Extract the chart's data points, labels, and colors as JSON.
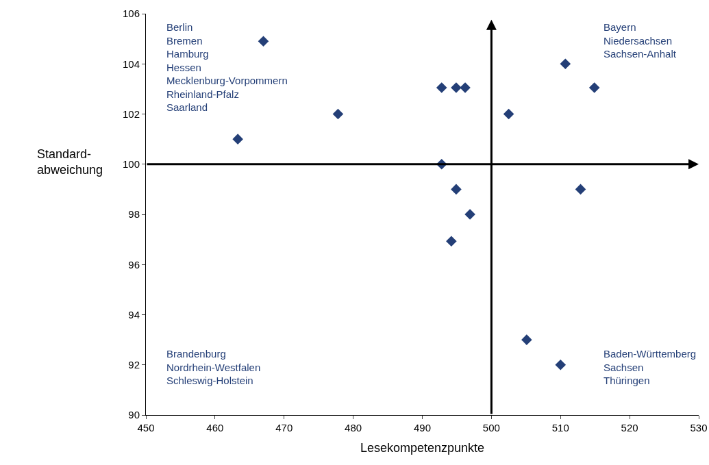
{
  "chart_data": {
    "type": "scatter",
    "xlabel": "Lesekompetenzpunkte",
    "ylabel": "Standard-\nabweichung",
    "series": [
      {
        "color": "#243f77",
        "x": [
          467,
          477.8,
          463.3,
          492.8,
          494.9,
          496.2,
          502.5,
          510.7,
          514.9,
          492.8,
          494.9,
          496.9,
          494.2,
          512.9,
          505.1,
          510
        ],
        "values": [
          104.9,
          102,
          101,
          103.05,
          103.05,
          103.05,
          102,
          104,
          103.05,
          100,
          99,
          98,
          96.93,
          99,
          93,
          92
        ]
      }
    ],
    "xlim": [
      450,
      530
    ],
    "xticks": [
      450,
      460,
      470,
      480,
      490,
      500,
      510,
      520,
      530
    ],
    "ylim": [
      90,
      106
    ],
    "yticks": [
      90,
      92,
      94,
      96,
      98,
      100,
      102,
      104,
      106
    ],
    "grid": false,
    "marker": "diamond",
    "ref_lines": [
      {
        "axis": "x",
        "value": 500,
        "color": "#000000"
      },
      {
        "axis": "y",
        "value": 100,
        "color": "#000000"
      }
    ],
    "annotations": [
      "Berlin\nBremen\nHamburg\nHessen\nMecklenburg-Vorpommern\nRheinland-Pfalz\nSaarland",
      "Bayern\nNiedersachsen\nSachsen-Anhalt",
      "Brandenburg\nNordrhein-Westfalen\nSchleswig-Holstein",
      "Baden-Württemberg\nSachsen\nThüringen"
    ]
  }
}
